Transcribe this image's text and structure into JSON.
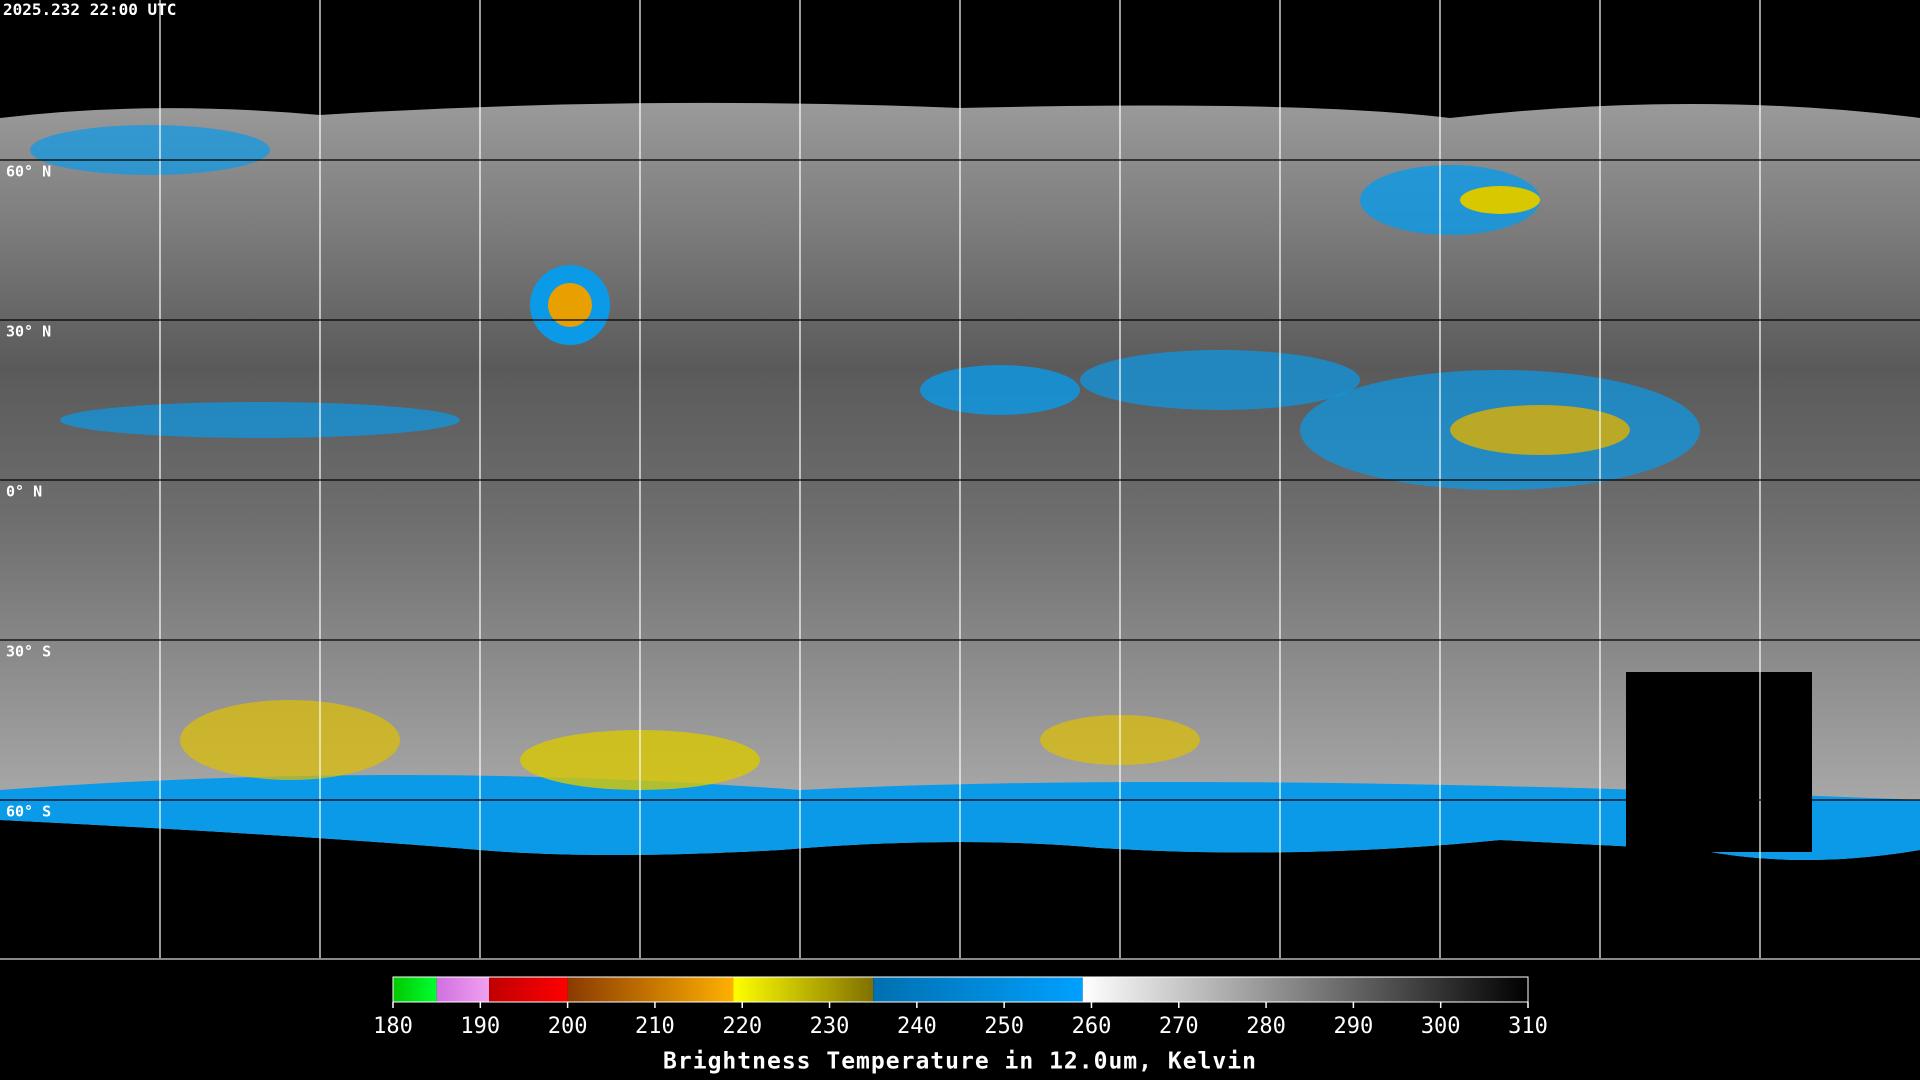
{
  "map": {
    "timestamp": "2025.232 22:00 UTC",
    "lon_lines": [
      -150,
      -120,
      -90,
      -60,
      -30,
      0,
      30,
      60,
      90,
      120,
      150
    ],
    "lat_lines": [
      {
        "value": 60,
        "label": "60° N"
      },
      {
        "value": 30,
        "label": "30° N"
      },
      {
        "value": 0,
        "label": "0° N"
      },
      {
        "value": -30,
        "label": "30° S"
      },
      {
        "value": -60,
        "label": "60° S"
      }
    ]
  },
  "colorbar": {
    "title": "Brightness Temperature in 12.0um, Kelvin",
    "range": [
      180,
      310
    ],
    "ticks": [
      180,
      190,
      200,
      210,
      220,
      230,
      240,
      250,
      260,
      270,
      280,
      290,
      300,
      310
    ],
    "segments": [
      {
        "from": 180,
        "to": 185,
        "colors": [
          "#00c800",
          "#00ff30"
        ]
      },
      {
        "from": 185,
        "to": 191,
        "colors": [
          "#d070e0",
          "#f0a0f0"
        ]
      },
      {
        "from": 191,
        "to": 200,
        "colors": [
          "#c00000",
          "#ff0000"
        ]
      },
      {
        "from": 200,
        "to": 219,
        "colors": [
          "#8a3a00",
          "#ffb000"
        ]
      },
      {
        "from": 219,
        "to": 235,
        "colors": [
          "#ffff00",
          "#807000"
        ]
      },
      {
        "from": 235,
        "to": 259,
        "colors": [
          "#0070b0",
          "#00a0ff"
        ]
      },
      {
        "from": 259,
        "to": 310,
        "colors": [
          "#ffffff",
          "#000000"
        ]
      }
    ]
  }
}
